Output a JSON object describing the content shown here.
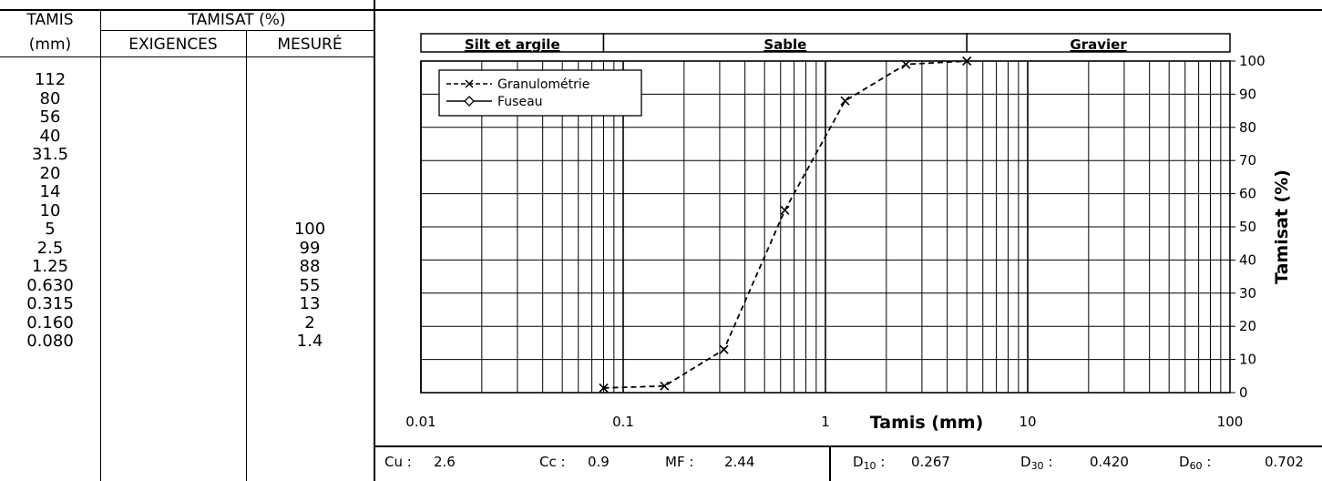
{
  "table": {
    "col_tamis": "TAMIS",
    "col_tamis_unit": "(mm)",
    "col_tamisat": "TAMISAT (%)",
    "col_exigences": "EXIGENCES",
    "col_mesure": "MESURÉ",
    "rows": [
      {
        "tamis": "112",
        "exigences": "",
        "mesure": ""
      },
      {
        "tamis": "80",
        "exigences": "",
        "mesure": ""
      },
      {
        "tamis": "56",
        "exigences": "",
        "mesure": ""
      },
      {
        "tamis": "40",
        "exigences": "",
        "mesure": ""
      },
      {
        "tamis": "31.5",
        "exigences": "",
        "mesure": ""
      },
      {
        "tamis": "20",
        "exigences": "",
        "mesure": ""
      },
      {
        "tamis": "14",
        "exigences": "",
        "mesure": ""
      },
      {
        "tamis": "10",
        "exigences": "",
        "mesure": ""
      },
      {
        "tamis": "5",
        "exigences": "",
        "mesure": "100"
      },
      {
        "tamis": "2.5",
        "exigences": "",
        "mesure": "99"
      },
      {
        "tamis": "1.25",
        "exigences": "",
        "mesure": "88"
      },
      {
        "tamis": "0.630",
        "exigences": "",
        "mesure": "55"
      },
      {
        "tamis": "0.315",
        "exigences": "",
        "mesure": "13"
      },
      {
        "tamis": "0.160",
        "exigences": "",
        "mesure": "2"
      },
      {
        "tamis": "0.080",
        "exigences": "",
        "mesure": "1.4"
      }
    ]
  },
  "chart_data": {
    "type": "line",
    "x_scale": "log",
    "xlim": [
      0.01,
      100
    ],
    "ylim": [
      0,
      100
    ],
    "xlabel": "Tamis (mm)",
    "ylabel": "Tamisat (%)",
    "x_ticks": [
      "0.01",
      "0.1",
      "1",
      "10",
      "100"
    ],
    "y_ticks": [
      "0",
      "10",
      "20",
      "30",
      "40",
      "50",
      "60",
      "70",
      "80",
      "90",
      "100"
    ],
    "grid": true,
    "y_axis_side": "right",
    "legend_position": "top-left",
    "zones": [
      {
        "label": "Silt et argile",
        "from": 0.01,
        "to": 0.08
      },
      {
        "label": "Sable",
        "from": 0.08,
        "to": 5
      },
      {
        "label": "Gravier",
        "from": 5,
        "to": 100
      }
    ],
    "series": [
      {
        "name": "Granulométrie",
        "style": "dashed",
        "marker": "x",
        "x": [
          0.08,
          0.16,
          0.315,
          0.63,
          1.25,
          2.5,
          5
        ],
        "y": [
          1.4,
          2,
          13,
          55,
          88,
          99,
          100
        ]
      },
      {
        "name": "Fuseau",
        "style": "solid",
        "marker": "diamond",
        "x": [],
        "y": []
      }
    ]
  },
  "stats": {
    "cu_label": "Cu :",
    "cu_value": "2.6",
    "cc_label": "Cc :",
    "cc_value": "0.9",
    "mf_label": "MF :",
    "mf_value": "2.44",
    "d10_value": "0.267",
    "d30_value": "0.420",
    "d60_value": "0.702"
  }
}
